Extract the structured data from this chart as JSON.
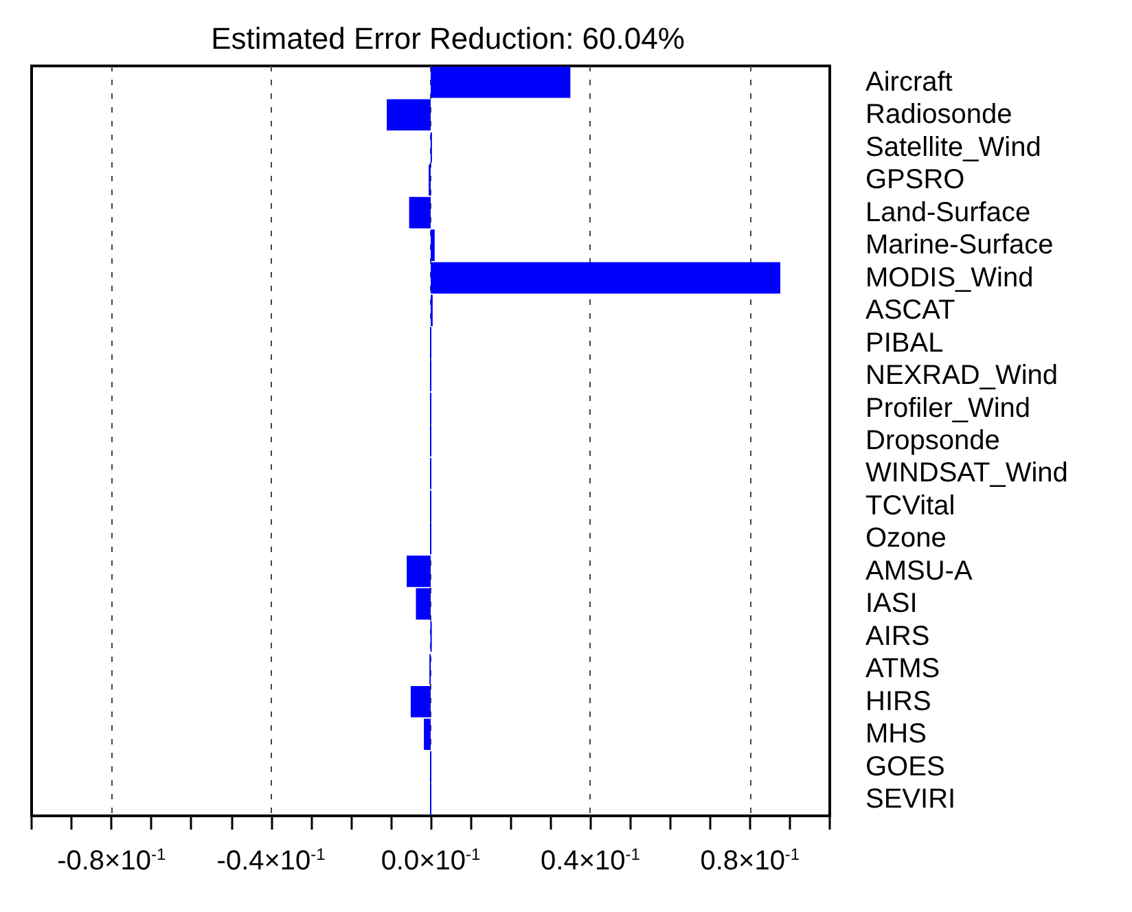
{
  "chart_data": {
    "type": "bar",
    "orientation": "horizontal",
    "title": "Estimated Error Reduction: 60.04%",
    "categories": [
      "Aircraft",
      "Radiosonde",
      "Satellite_Wind",
      "GPSRO",
      "Land-Surface",
      "Marine-Surface",
      "MODIS_Wind",
      "ASCAT",
      "PIBAL",
      "NEXRAD_Wind",
      "Profiler_Wind",
      "Dropsonde",
      "WINDSAT_Wind",
      "TCVital",
      "Ozone",
      "AMSU-A",
      "IASI",
      "AIRS",
      "ATMS",
      "HIRS",
      "MHS",
      "GOES",
      "SEVIRI"
    ],
    "values": [
      0.035,
      -0.011,
      0.0003,
      -0.0005,
      -0.0054,
      0.001,
      0.0876,
      0.0005,
      0,
      0,
      0,
      0,
      0,
      0,
      0,
      -0.006,
      -0.0037,
      0.0002,
      -0.0003,
      -0.005,
      -0.0017,
      0,
      0
    ],
    "color": "#0000ff",
    "xlim": [
      -0.1,
      0.1
    ],
    "xticks": [
      {
        "value": -0.1,
        "label": null
      },
      {
        "value": -0.09,
        "label": null
      },
      {
        "value": -0.08,
        "label": "-0.8×10$^{-1}$"
      },
      {
        "value": -0.07,
        "label": null
      },
      {
        "value": -0.06,
        "label": null
      },
      {
        "value": -0.05,
        "label": null
      },
      {
        "value": -0.04,
        "label": "-0.4×10$^{-1}$"
      },
      {
        "value": -0.03,
        "label": null
      },
      {
        "value": -0.02,
        "label": null
      },
      {
        "value": -0.01,
        "label": null
      },
      {
        "value": 0,
        "label": "0.0×10$^{-1}$"
      },
      {
        "value": 0.01,
        "label": null
      },
      {
        "value": 0.02,
        "label": null
      },
      {
        "value": 0.03,
        "label": null
      },
      {
        "value": 0.04,
        "label": "0.4×10$^{-1}$"
      },
      {
        "value": 0.05,
        "label": null
      },
      {
        "value": 0.06,
        "label": null
      },
      {
        "value": 0.07,
        "label": null
      },
      {
        "value": 0.08,
        "label": "0.8×10$^{-1}$"
      },
      {
        "value": 0.09,
        "label": null
      },
      {
        "value": 0.1,
        "label": null
      }
    ],
    "grid": "x"
  }
}
